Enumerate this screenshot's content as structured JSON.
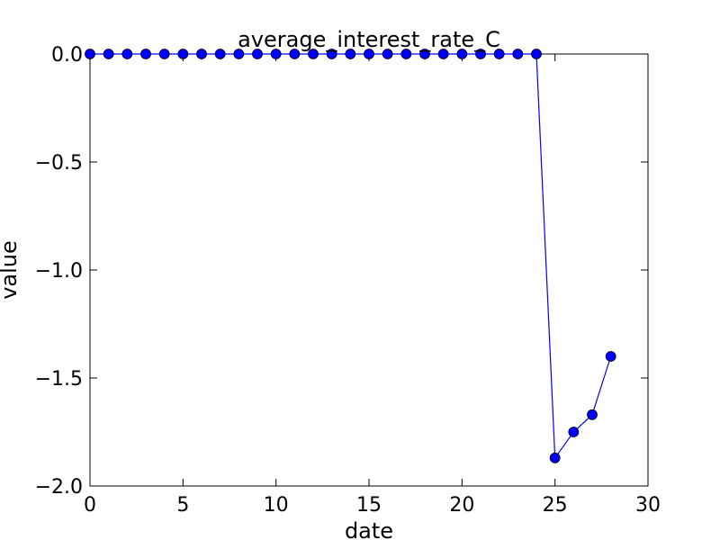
{
  "chart_data": {
    "type": "line",
    "title": "average_interest_rate_C",
    "xlabel": "date",
    "ylabel": "value",
    "xlim": [
      0,
      30
    ],
    "ylim": [
      -2.0,
      0.0
    ],
    "xticks": [
      0,
      5,
      10,
      15,
      20,
      25,
      30
    ],
    "yticks": [
      0.0,
      -0.5,
      -1.0,
      -1.5,
      -2.0
    ],
    "xtick_labels": [
      "0",
      "5",
      "10",
      "15",
      "20",
      "25",
      "30"
    ],
    "ytick_labels": [
      "0.0",
      "−0.5",
      "−1.0",
      "−1.5",
      "−2.0"
    ],
    "grid": false,
    "series": [
      {
        "color": "#0000ff",
        "marker": "circle",
        "segments": [
          {
            "x": [
              0,
              1,
              2,
              3,
              4,
              5,
              6,
              7,
              8,
              9,
              10,
              11,
              12,
              13,
              14,
              15,
              16,
              17,
              18,
              19,
              20,
              21,
              22,
              23,
              24,
              25,
              26,
              27
            ],
            "y": [
              0,
              0,
              0,
              0,
              0,
              0,
              0,
              0,
              0,
              0,
              0,
              0,
              0,
              0,
              0,
              0,
              0,
              0,
              0,
              0,
              0,
              0,
              0,
              0,
              0,
              -1.87,
              -1.75,
              -1.67
            ]
          },
          {
            "x": [
              28
            ],
            "y": [
              -1.4
            ]
          }
        ]
      }
    ],
    "bridge_segment": {
      "x": [
        27,
        28
      ],
      "y": [
        -1.67,
        -1.4
      ]
    }
  }
}
